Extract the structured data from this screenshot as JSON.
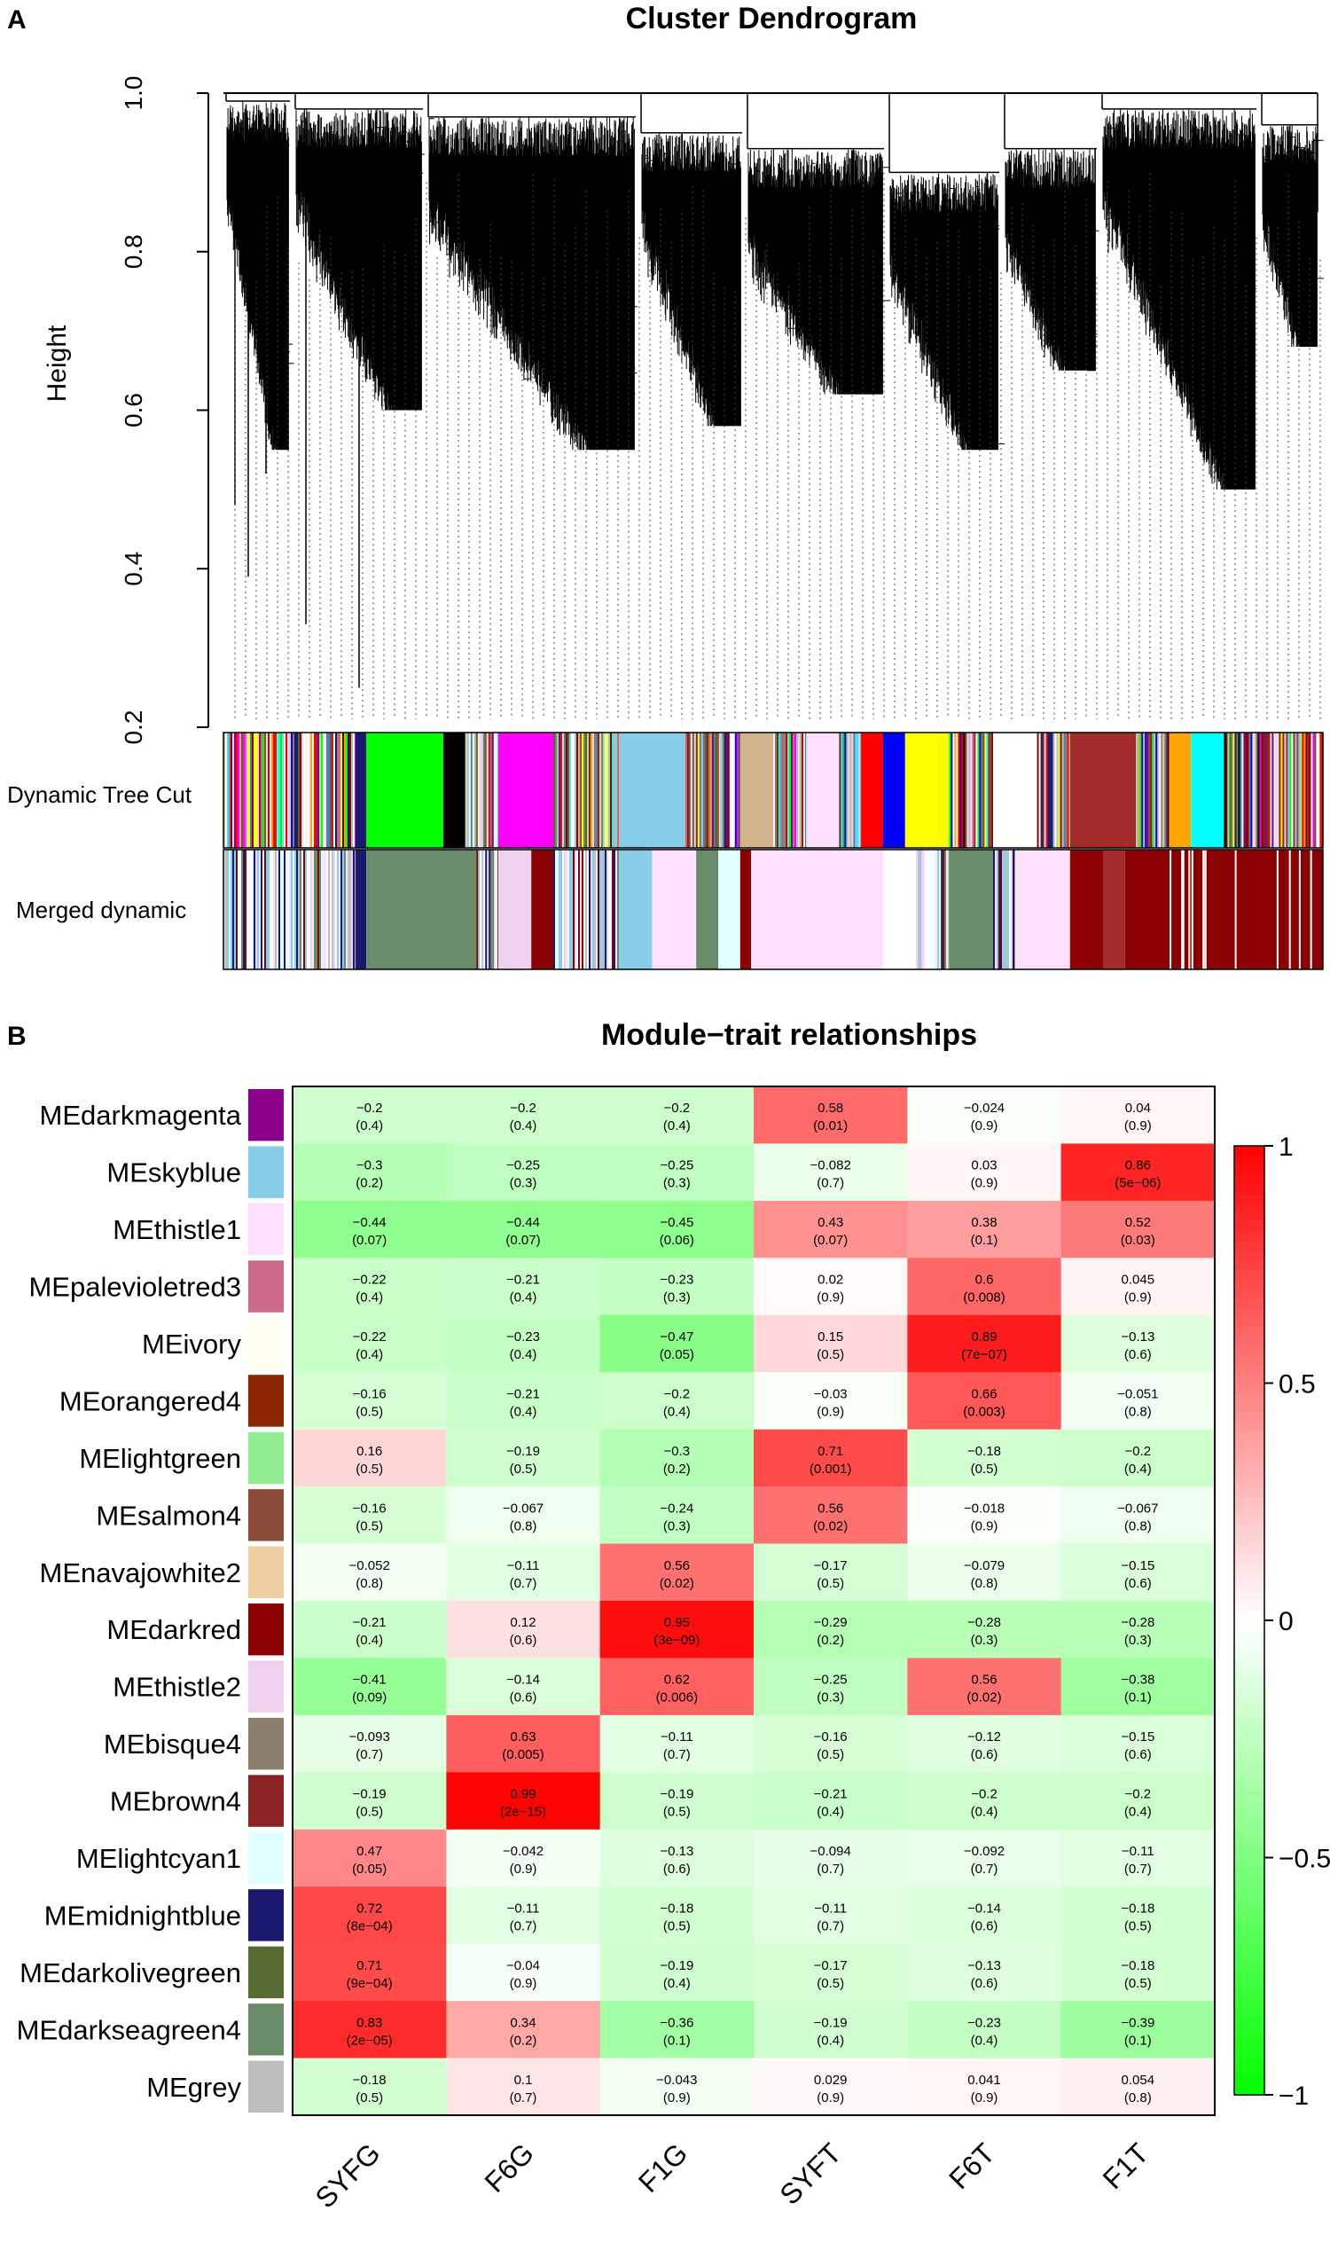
{
  "panel_a": {
    "label": "A",
    "title": "Cluster Dendrogram",
    "ylabel": "Height",
    "yticks": [
      "0.2",
      "0.4",
      "0.6",
      "0.8",
      "1.0"
    ],
    "row_labels": [
      "Dynamic Tree Cut",
      "Merged dynamic"
    ]
  },
  "panel_b": {
    "label": "B",
    "title": "Module−trait relationships"
  },
  "colors": {
    "positive": "#ff0000",
    "negative": "#00ff00",
    "neutral": "#ffffff"
  },
  "chart_data": [
    {
      "type": "dendrogram",
      "title": "Cluster Dendrogram",
      "ylabel": "Height",
      "ylim": [
        0.2,
        1.0
      ],
      "color_rows": [
        "Dynamic Tree Cut",
        "Merged dynamic"
      ],
      "merged_modules": [
        {
          "name": "darkseagreen4",
          "color": "#698b69"
        },
        {
          "name": "midnightblue",
          "color": "#191970"
        },
        {
          "name": "thistle2",
          "color": "#eed2ee"
        },
        {
          "name": "darkred",
          "color": "#8b0000"
        },
        {
          "name": "lightcyan1",
          "color": "#e0ffff"
        },
        {
          "name": "skyblue",
          "color": "#87ceeb"
        },
        {
          "name": "grey",
          "color": "#bebebe"
        }
      ]
    },
    {
      "type": "heatmap",
      "title": "Module−trait relationships",
      "x": [
        "SYFG",
        "F6G",
        "F1G",
        "SYFT",
        "F6T",
        "F1T"
      ],
      "y": [
        "MEdarkmagenta",
        "MEskyblue",
        "MEthistle1",
        "MEpalevioletred3",
        "MEivory",
        "MEorangered4",
        "MElightgreen",
        "MEsalmon4",
        "MEnavajowhite2",
        "MEdarkred",
        "MEthistle2",
        "MEbisque4",
        "MEbrown4",
        "MElightcyan1",
        "MEmidnightblue",
        "MEdarkolivegreen",
        "MEdarkseagreen4",
        "MEgrey"
      ],
      "module_colors": [
        "#8b008b",
        "#87ceeb",
        "#ffe1ff",
        "#cd6889",
        "#fffff0",
        "#8b2500",
        "#90ee90",
        "#8b4c39",
        "#eecfa1",
        "#8b0000",
        "#eed2ee",
        "#8b7d6b",
        "#8b2323",
        "#e0ffff",
        "#191970",
        "#556b2f",
        "#698b69",
        "#bebebe"
      ],
      "values": [
        [
          "−0.2",
          "−0.2",
          "−0.2",
          "0.58",
          "−0.024",
          "0.04"
        ],
        [
          "−0.3",
          "−0.25",
          "−0.25",
          "−0.082",
          "0.03",
          "0.86"
        ],
        [
          "−0.44",
          "−0.44",
          "−0.45",
          "0.43",
          "0.38",
          "0.52"
        ],
        [
          "−0.22",
          "−0.21",
          "−0.23",
          "0.02",
          "0.6",
          "0.045"
        ],
        [
          "−0.22",
          "−0.23",
          "−0.47",
          "0.15",
          "0.89",
          "−0.13"
        ],
        [
          "−0.16",
          "−0.21",
          "−0.2",
          "−0.03",
          "0.66",
          "−0.051"
        ],
        [
          "0.16",
          "−0.19",
          "−0.3",
          "0.71",
          "−0.18",
          "−0.2"
        ],
        [
          "−0.16",
          "−0.067",
          "−0.24",
          "0.56",
          "−0.018",
          "−0.067"
        ],
        [
          "−0.052",
          "−0.11",
          "0.56",
          "−0.17",
          "−0.079",
          "−0.15"
        ],
        [
          "−0.21",
          "0.12",
          "0.95",
          "−0.29",
          "−0.28",
          "−0.28"
        ],
        [
          "−0.41",
          "−0.14",
          "0.62",
          "−0.25",
          "0.56",
          "−0.38"
        ],
        [
          "−0.093",
          "0.63",
          "−0.11",
          "−0.16",
          "−0.12",
          "−0.15"
        ],
        [
          "−0.19",
          "0.99",
          "−0.19",
          "−0.21",
          "−0.2",
          "−0.2"
        ],
        [
          "0.47",
          "−0.042",
          "−0.13",
          "−0.094",
          "−0.092",
          "−0.11"
        ],
        [
          "0.72",
          "−0.11",
          "−0.18",
          "−0.11",
          "−0.14",
          "−0.18"
        ],
        [
          "0.71",
          "−0.04",
          "−0.19",
          "−0.17",
          "−0.13",
          "−0.18"
        ],
        [
          "0.83",
          "0.34",
          "−0.36",
          "−0.19",
          "−0.23",
          "−0.39"
        ],
        [
          "−0.18",
          "0.1",
          "−0.043",
          "0.029",
          "0.041",
          "0.054"
        ]
      ],
      "pvalues": [
        [
          "(0.4)",
          "(0.4)",
          "(0.4)",
          "(0.01)",
          "(0.9)",
          "(0.9)"
        ],
        [
          "(0.2)",
          "(0.3)",
          "(0.3)",
          "(0.7)",
          "(0.9)",
          "(5e−06)"
        ],
        [
          "(0.07)",
          "(0.07)",
          "(0.06)",
          "(0.07)",
          "(0.1)",
          "(0.03)"
        ],
        [
          "(0.4)",
          "(0.4)",
          "(0.3)",
          "(0.9)",
          "(0.008)",
          "(0.9)"
        ],
        [
          "(0.4)",
          "(0.4)",
          "(0.05)",
          "(0.5)",
          "(7e−07)",
          "(0.6)"
        ],
        [
          "(0.5)",
          "(0.4)",
          "(0.4)",
          "(0.9)",
          "(0.003)",
          "(0.8)"
        ],
        [
          "(0.5)",
          "(0.5)",
          "(0.2)",
          "(0.001)",
          "(0.5)",
          "(0.4)"
        ],
        [
          "(0.5)",
          "(0.8)",
          "(0.3)",
          "(0.02)",
          "(0.9)",
          "(0.8)"
        ],
        [
          "(0.8)",
          "(0.7)",
          "(0.02)",
          "(0.5)",
          "(0.8)",
          "(0.6)"
        ],
        [
          "(0.4)",
          "(0.6)",
          "(3e−09)",
          "(0.2)",
          "(0.3)",
          "(0.3)"
        ],
        [
          "(0.09)",
          "(0.6)",
          "(0.006)",
          "(0.3)",
          "(0.02)",
          "(0.1)"
        ],
        [
          "(0.7)",
          "(0.005)",
          "(0.7)",
          "(0.5)",
          "(0.6)",
          "(0.6)"
        ],
        [
          "(0.5)",
          "(2e−15)",
          "(0.5)",
          "(0.4)",
          "(0.4)",
          "(0.4)"
        ],
        [
          "(0.05)",
          "(0.9)",
          "(0.6)",
          "(0.7)",
          "(0.7)",
          "(0.7)"
        ],
        [
          "(8e−04)",
          "(0.7)",
          "(0.5)",
          "(0.7)",
          "(0.6)",
          "(0.5)"
        ],
        [
          "(9e−04)",
          "(0.9)",
          "(0.4)",
          "(0.5)",
          "(0.6)",
          "(0.5)"
        ],
        [
          "(2e−05)",
          "(0.2)",
          "(0.1)",
          "(0.4)",
          "(0.4)",
          "(0.1)"
        ],
        [
          "(0.5)",
          "(0.7)",
          "(0.9)",
          "(0.9)",
          "(0.9)",
          "(0.8)"
        ]
      ],
      "zlim": [
        -1,
        1
      ],
      "colorbar_ticks": [
        "1",
        "0.5",
        "0",
        "−0.5",
        "−1"
      ]
    }
  ]
}
